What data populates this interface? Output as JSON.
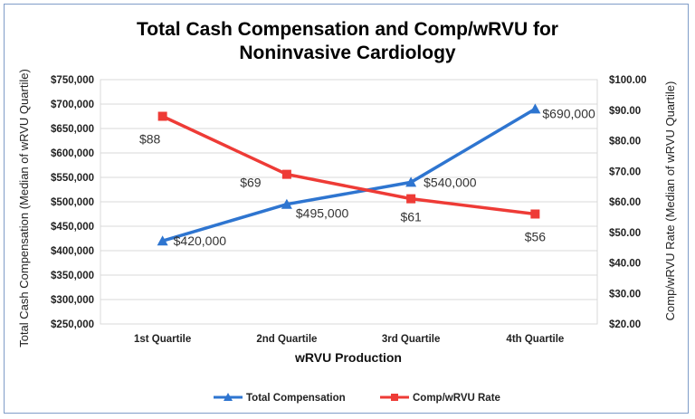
{
  "chart_data": {
    "type": "line",
    "title_lines": [
      "Total Cash Compensation and Comp/wRVU for",
      "Noninvasive Cardiology"
    ],
    "xlabel": "wRVU Production",
    "ylabel_left": "Total Cash Compensation (Median of wRVU Quartile)",
    "ylabel_right": "Comp/wRVU Rate (Median of wRVU Quartile)",
    "categories": [
      "1st Quartile",
      "2nd Quartile",
      "3rd Quartile",
      "4th Quartile"
    ],
    "ylim_left": [
      250000,
      750000
    ],
    "ylim_right": [
      20,
      100
    ],
    "yticks_left": [
      "$250,000",
      "$300,000",
      "$350,000",
      "$400,000",
      "$450,000",
      "$500,000",
      "$550,000",
      "$600,000",
      "$650,000",
      "$700,000",
      "$750,000"
    ],
    "yticks_right": [
      "$20.00",
      "$30.00",
      "$40.00",
      "$50.00",
      "$60.00",
      "$70.00",
      "$80.00",
      "$90.00",
      "$100.00"
    ],
    "grid": true,
    "legend_position": "bottom",
    "series": [
      {
        "name": "Total Compensation",
        "axis": "left",
        "color": "#2e75d0",
        "marker": "triangle",
        "values": [
          420000,
          495000,
          540000,
          690000
        ],
        "labels": [
          "$420,000",
          "$495,000",
          "$540,000",
          "$690,000"
        ]
      },
      {
        "name": "Comp/wRVU Rate",
        "axis": "right",
        "color": "#ee3b36",
        "marker": "square",
        "values": [
          88,
          69,
          61,
          56
        ],
        "labels": [
          "$88",
          "$69",
          "$61",
          "$56"
        ]
      }
    ]
  }
}
